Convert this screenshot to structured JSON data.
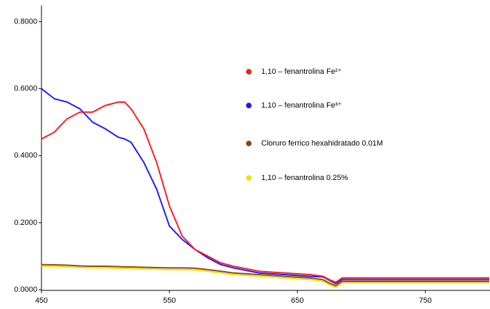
{
  "chart_data": {
    "type": "line",
    "x": [
      450,
      460,
      470,
      480,
      490,
      500,
      510,
      515,
      520,
      530,
      540,
      550,
      560,
      570,
      580,
      590,
      600,
      620,
      640,
      660,
      670,
      675,
      680,
      685,
      690,
      700,
      750,
      800
    ],
    "series": [
      {
        "name": "1,10 – fenantrolina Fe²⁺",
        "color": "#ff1a1a",
        "values": [
          0.45,
          0.47,
          0.51,
          0.53,
          0.53,
          0.55,
          0.56,
          0.56,
          0.54,
          0.48,
          0.38,
          0.25,
          0.16,
          0.12,
          0.1,
          0.08,
          0.07,
          0.055,
          0.05,
          0.045,
          0.04,
          0.03,
          0.022,
          0.035,
          0.035,
          0.035,
          0.035,
          0.035
        ]
      },
      {
        "name": "1,10 – fenantrolina Fe³⁺",
        "color": "#1a1aff",
        "values": [
          0.6,
          0.57,
          0.56,
          0.54,
          0.5,
          0.48,
          0.455,
          0.45,
          0.44,
          0.38,
          0.3,
          0.19,
          0.15,
          0.12,
          0.095,
          0.075,
          0.065,
          0.05,
          0.045,
          0.04,
          0.038,
          0.028,
          0.018,
          0.03,
          0.03,
          0.03,
          0.03,
          0.03
        ]
      },
      {
        "name": "Cloruro ferrico hexahidratado 0.01M",
        "color": "#8b4513",
        "values": [
          0.075,
          0.074,
          0.073,
          0.071,
          0.07,
          0.07,
          0.069,
          0.068,
          0.068,
          0.067,
          0.066,
          0.065,
          0.065,
          0.064,
          0.06,
          0.055,
          0.05,
          0.045,
          0.04,
          0.035,
          0.03,
          0.02,
          0.012,
          0.025,
          0.025,
          0.025,
          0.025,
          0.025
        ]
      },
      {
        "name": "1,10 – fenantrolina 0.25%",
        "color": "#f0e000",
        "values": [
          0.07,
          0.069,
          0.068,
          0.066,
          0.065,
          0.065,
          0.064,
          0.063,
          0.063,
          0.062,
          0.061,
          0.06,
          0.06,
          0.059,
          0.055,
          0.05,
          0.045,
          0.04,
          0.035,
          0.03,
          0.025,
          0.015,
          0.007,
          0.02,
          0.02,
          0.02,
          0.02,
          0.02
        ]
      }
    ],
    "xlim": [
      450,
      800
    ],
    "xticks": [
      450,
      550,
      650,
      750
    ],
    "ylim": [
      0,
      0.84
    ],
    "yticks": [
      {
        "value": 0,
        "label": "0.0000"
      },
      {
        "value": 0.2,
        "label": "0.2000"
      },
      {
        "value": 0.4,
        "label": "0.4000"
      },
      {
        "value": 0.6,
        "label": "0.6000"
      },
      {
        "value": 0.8,
        "label": "0.8000"
      }
    ],
    "legend_position": "right",
    "grid": false
  }
}
